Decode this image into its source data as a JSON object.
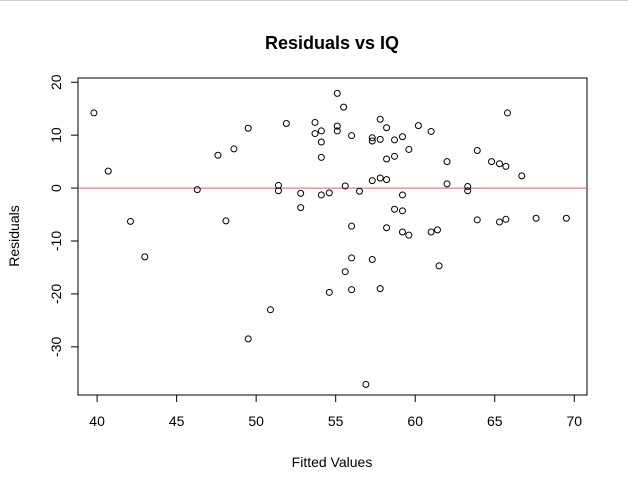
{
  "chart_data": {
    "type": "scatter",
    "title": "Residuals vs IQ",
    "xlabel": "Fitted Values",
    "ylabel": "Residuals",
    "xlim": [
      38.8,
      70.8
    ],
    "ylim": [
      -39.1,
      20.8
    ],
    "x_ticks": [
      40,
      45,
      50,
      55,
      60,
      65,
      70
    ],
    "y_ticks": [
      -30,
      -20,
      -10,
      0,
      10,
      20
    ],
    "x_tick_labels": [
      "40",
      "45",
      "50",
      "55",
      "60",
      "65",
      "70"
    ],
    "y_tick_labels": [
      "-30",
      "-20",
      "-10",
      "0",
      "10",
      "20"
    ],
    "reference_line": {
      "y": 0,
      "color": "#cc6666"
    },
    "point_color": "#000000",
    "grid": false,
    "points": [
      [
        39.8,
        14.2
      ],
      [
        40.7,
        3.2
      ],
      [
        42.1,
        -6.3
      ],
      [
        43.0,
        -13.0
      ],
      [
        46.3,
        -0.3
      ],
      [
        47.6,
        6.2
      ],
      [
        48.1,
        -6.2
      ],
      [
        48.6,
        7.4
      ],
      [
        49.5,
        11.3
      ],
      [
        49.5,
        -28.5
      ],
      [
        50.9,
        -23.0
      ],
      [
        51.4,
        0.5
      ],
      [
        51.4,
        -0.5
      ],
      [
        51.9,
        12.2
      ],
      [
        52.8,
        -1.0
      ],
      [
        52.8,
        -3.7
      ],
      [
        53.7,
        12.4
      ],
      [
        53.7,
        10.3
      ],
      [
        54.1,
        10.8
      ],
      [
        54.1,
        8.7
      ],
      [
        54.1,
        5.8
      ],
      [
        54.1,
        -1.3
      ],
      [
        54.6,
        -0.9
      ],
      [
        54.6,
        -19.7
      ],
      [
        55.1,
        17.9
      ],
      [
        55.1,
        11.7
      ],
      [
        55.1,
        10.8
      ],
      [
        55.5,
        15.3
      ],
      [
        55.6,
        0.4
      ],
      [
        55.6,
        -15.8
      ],
      [
        56.0,
        9.9
      ],
      [
        56.0,
        -7.2
      ],
      [
        56.0,
        -13.2
      ],
      [
        56.0,
        -19.2
      ],
      [
        56.5,
        -0.6
      ],
      [
        56.9,
        -37.1
      ],
      [
        57.3,
        8.9
      ],
      [
        57.3,
        9.5
      ],
      [
        57.3,
        1.4
      ],
      [
        57.3,
        -13.5
      ],
      [
        57.8,
        13.0
      ],
      [
        57.8,
        9.2
      ],
      [
        57.8,
        1.9
      ],
      [
        57.8,
        -19.0
      ],
      [
        58.2,
        11.4
      ],
      [
        58.2,
        5.5
      ],
      [
        58.2,
        1.6
      ],
      [
        58.2,
        -7.5
      ],
      [
        58.7,
        9.1
      ],
      [
        58.7,
        6.0
      ],
      [
        58.7,
        -4.0
      ],
      [
        59.2,
        9.7
      ],
      [
        59.2,
        -1.3
      ],
      [
        59.2,
        -4.3
      ],
      [
        59.2,
        -8.3
      ],
      [
        59.6,
        7.3
      ],
      [
        59.6,
        -8.9
      ],
      [
        60.2,
        11.8
      ],
      [
        61.0,
        10.7
      ],
      [
        61.0,
        -8.3
      ],
      [
        61.4,
        -7.9
      ],
      [
        61.5,
        -14.7
      ],
      [
        62.0,
        5.0
      ],
      [
        62.0,
        0.8
      ],
      [
        63.3,
        0.3
      ],
      [
        63.3,
        -0.5
      ],
      [
        63.9,
        7.1
      ],
      [
        63.9,
        -6.0
      ],
      [
        64.8,
        5.0
      ],
      [
        65.3,
        4.6
      ],
      [
        65.3,
        -6.4
      ],
      [
        65.7,
        4.1
      ],
      [
        65.7,
        -5.9
      ],
      [
        65.8,
        14.2
      ],
      [
        66.7,
        2.3
      ],
      [
        67.6,
        -5.7
      ],
      [
        69.5,
        -5.7
      ]
    ]
  }
}
